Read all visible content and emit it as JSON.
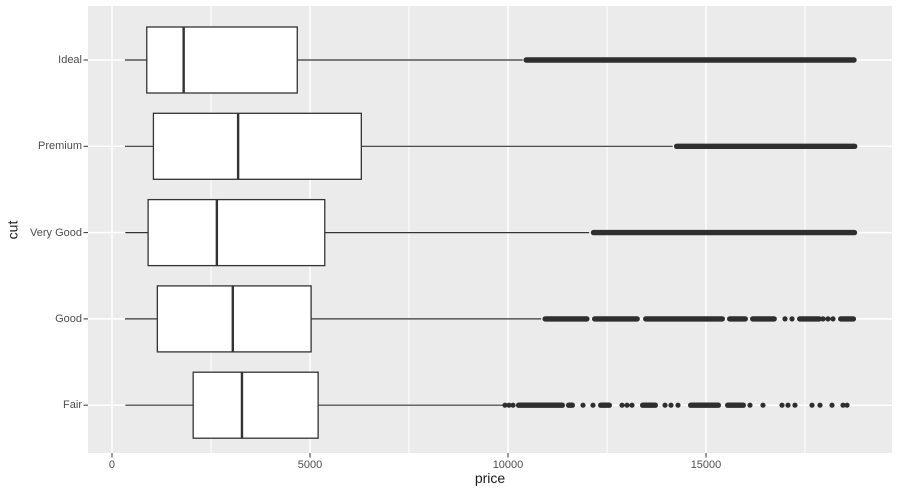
{
  "chart_data": {
    "type": "boxplot",
    "orientation": "horizontal",
    "title": "",
    "xlabel": "price",
    "ylabel": "cut",
    "xlim": [
      -606,
      19697
    ],
    "x_major_ticks": [
      0,
      5000,
      10000,
      15000
    ],
    "x_tick_labels": [
      "0",
      "5000",
      "10000",
      "15000"
    ],
    "x_minor_ticks": [
      2500,
      7500,
      12500,
      17500
    ],
    "legend": "none",
    "grid": "major-and-minor-x, major-y",
    "colors": {
      "panel_bg": "#ebebeb",
      "grid": "#ffffff",
      "stroke": "#333333",
      "box_fill": "#ffffff",
      "outlier": "#2e2e2e",
      "tick_text": "#4d4d4d",
      "axis_title_text": "#1a1a1a",
      "figure_bg": "#ffffff"
    },
    "categories_top_to_bottom": [
      "Ideal",
      "Premium",
      "Very Good",
      "Good",
      "Fair"
    ],
    "series": [
      {
        "label": "Ideal",
        "min": 326,
        "q1": 878,
        "median": 1810,
        "q3": 4678.5,
        "whisker_max": 10372,
        "outlier_segments": [
          [
            10390,
            18806
          ]
        ],
        "outlier_dots": []
      },
      {
        "label": "Premium",
        "min": 326,
        "q1": 1046,
        "median": 3185,
        "q3": 6296,
        "whisker_max": 14160,
        "outlier_segments": [
          [
            14190,
            18823
          ]
        ],
        "outlier_dots": []
      },
      {
        "label": "Very Good",
        "min": 336,
        "q1": 912,
        "median": 2648,
        "q3": 5372.75,
        "whisker_max": 12050,
        "outlier_segments": [
          [
            12090,
            18818
          ]
        ],
        "outlier_dots": []
      },
      {
        "label": "Good",
        "min": 327,
        "q1": 1145,
        "median": 3050.5,
        "q3": 5028,
        "whisker_max": 10838,
        "outlier_segments": [
          [
            10870,
            12060
          ],
          [
            12120,
            13330
          ],
          [
            13410,
            15480
          ],
          [
            15530,
            16060
          ],
          [
            16111,
            16790
          ],
          [
            17298,
            17930
          ],
          [
            18333,
            18790
          ]
        ],
        "outlier_dots": [
          16995,
          17172,
          17955,
          18080,
          18207
        ]
      },
      {
        "label": "Fair",
        "min": 337,
        "q1": 2050,
        "median": 3282,
        "q3": 5205.5,
        "whisker_max": 9900,
        "outlier_segments": [
          [
            10200,
            11440
          ],
          [
            11464,
            11692
          ],
          [
            12273,
            12626
          ],
          [
            13333,
            13788
          ],
          [
            14545,
            15379
          ],
          [
            15480,
            16010
          ]
        ],
        "outlier_dots": [
          9924,
          10025,
          10126,
          11894,
          12146,
          12879,
          13005,
          13131,
          13965,
          14116,
          14293,
          16111,
          16439,
          16919,
          17071,
          17247,
          17677,
          17879,
          18182,
          18460,
          18561
        ]
      }
    ]
  }
}
